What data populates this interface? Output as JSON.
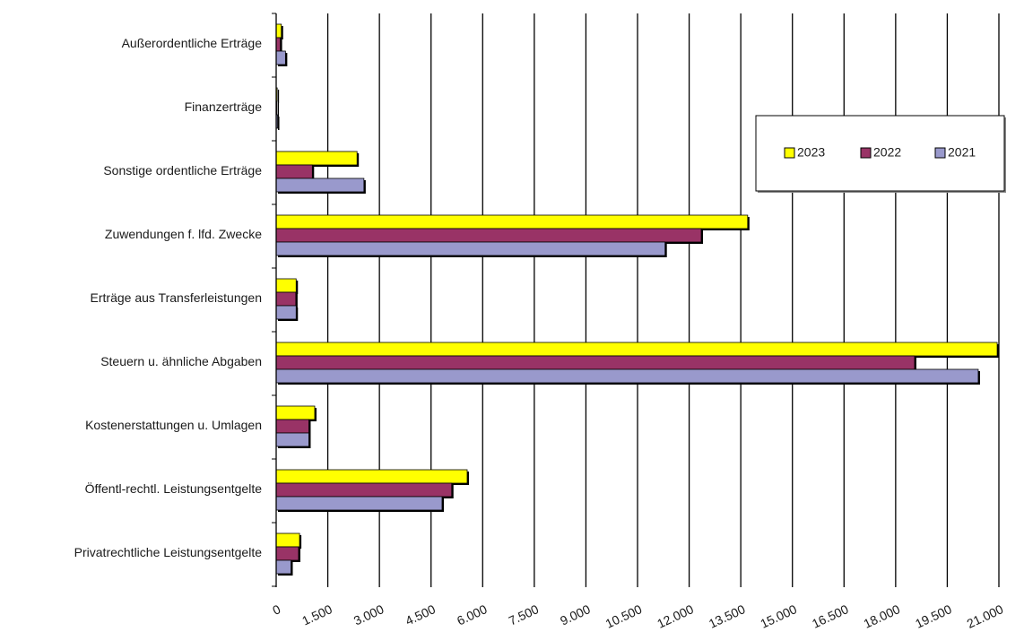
{
  "chart_data": {
    "type": "bar",
    "orientation": "horizontal",
    "categories": [
      "Außerordentliche Erträge",
      "Finanzerträge",
      "Sonstige ordentliche Erträge",
      "Zuwendungen f. lfd. Zwecke",
      "Erträge aus Transferleistungen",
      "Steuern u. ähnliche Abgaben",
      "Kostenerstattungen u. Umlagen",
      "Öffentl-rechtl. Leistungsentgelte",
      "Privatrechtliche Leistungsentgelte"
    ],
    "series": [
      {
        "name": "2023",
        "color": "#ffff00",
        "values": [
          150,
          30,
          2350,
          13700,
          580,
          20950,
          1120,
          5550,
          680
        ]
      },
      {
        "name": "2022",
        "color": "#993366",
        "values": [
          120,
          20,
          1050,
          12350,
          570,
          18550,
          950,
          5100,
          650
        ]
      },
      {
        "name": "2021",
        "color": "#9999cc",
        "values": [
          270,
          40,
          2550,
          11300,
          580,
          20400,
          950,
          4820,
          430
        ]
      }
    ],
    "xticks": [
      "0",
      "1.500",
      "3.000",
      "4.500",
      "6.000",
      "7.500",
      "9.000",
      "10.500",
      "12.000",
      "13.500",
      "15.000",
      "16.500",
      "18.000",
      "19.500",
      "21.000"
    ],
    "xlim": [
      0,
      21000
    ],
    "grid": true,
    "legend": "top-right"
  }
}
